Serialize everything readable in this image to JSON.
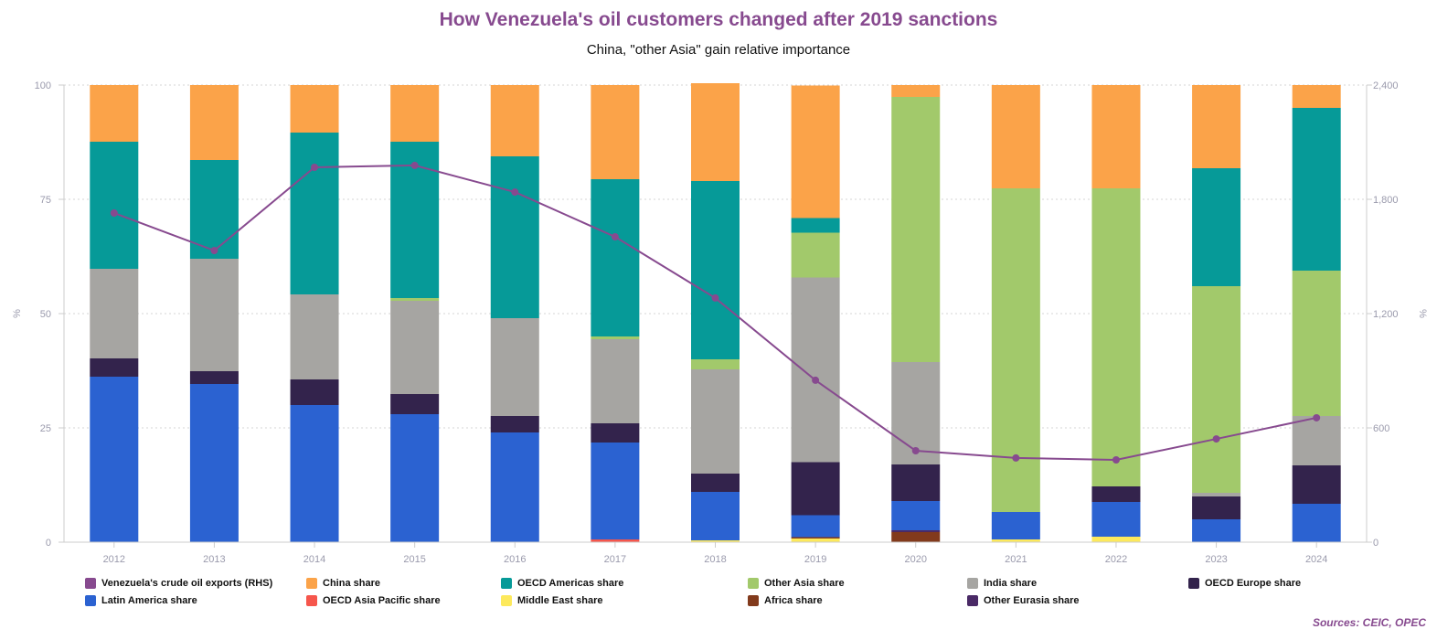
{
  "chart_data": {
    "type": "bar",
    "stacked": true,
    "title": "How Venezuela's oil customers changed after 2019 sanctions",
    "subtitle": "China, \"other Asia\" gain relative importance",
    "ylabel": "%",
    "ylabel_right": "%",
    "ylim": [
      0,
      100
    ],
    "ylim_right": [
      0,
      2400
    ],
    "yticks": [
      "0",
      "25",
      "50",
      "75",
      "100"
    ],
    "yticks_right": [
      "0",
      "600",
      "1,200",
      "1,800",
      "2,400"
    ],
    "grid": true,
    "legend_position": "bottom",
    "categories": [
      "2012",
      "2013",
      "2014",
      "2015",
      "2016",
      "2017",
      "2018",
      "2019",
      "2020",
      "2021",
      "2022",
      "2023",
      "2024"
    ],
    "series": [
      {
        "name": "OECD Asia Pacific share",
        "color": "#f6564c",
        "values": [
          0,
          0,
          0,
          0,
          0,
          0.6,
          0,
          0,
          0,
          0,
          0,
          0,
          0
        ]
      },
      {
        "name": "Middle East share",
        "color": "#fde95c",
        "values": [
          0,
          0,
          0,
          0,
          0,
          0,
          0.4,
          0.8,
          0,
          0.6,
          1.2,
          0,
          0
        ]
      },
      {
        "name": "Africa share",
        "color": "#823a1c",
        "values": [
          0,
          0,
          0,
          0,
          0,
          0,
          0,
          0.3,
          2.2,
          0,
          0,
          0,
          0
        ]
      },
      {
        "name": "Other Eurasia share",
        "color": "#4a2a66",
        "values": [
          0,
          0,
          0,
          0,
          0,
          0,
          0,
          0,
          0.4,
          0,
          0,
          0,
          0
        ]
      },
      {
        "name": "Latin America share",
        "color": "#2b62d1",
        "values": [
          36.2,
          34.6,
          30,
          28,
          24,
          21.2,
          10.6,
          4.8,
          6.4,
          6,
          7.6,
          5,
          8.4
        ]
      },
      {
        "name": "OECD Europe share",
        "color": "#33234c",
        "values": [
          4,
          2.8,
          5.6,
          4.4,
          3.6,
          4.2,
          4,
          11.6,
          8,
          0,
          3.4,
          5,
          8.4
        ]
      },
      {
        "name": "India share",
        "color": "#a6a5a2",
        "values": [
          19.6,
          24.6,
          18.6,
          20.4,
          21.4,
          18.4,
          22.8,
          40.4,
          22.4,
          0,
          0,
          0.8,
          10.8
        ]
      },
      {
        "name": "Other Asia share",
        "color": "#a2c96b",
        "values": [
          0,
          0,
          0,
          0.6,
          0,
          0.6,
          2.2,
          9.8,
          58,
          70.8,
          65.2,
          45.2,
          31.8
        ]
      },
      {
        "name": "OECD Americas share",
        "color": "#069a98",
        "values": [
          27.8,
          21.6,
          35.4,
          34.2,
          35.4,
          34.4,
          39,
          3.2,
          0,
          0,
          0,
          25.8,
          35.6
        ]
      },
      {
        "name": "China share",
        "color": "#fba349",
        "values": [
          12.4,
          16.4,
          10.4,
          12.4,
          15.6,
          20.6,
          21.4,
          29,
          2.6,
          22.6,
          22.6,
          18.2,
          5
        ]
      }
    ],
    "line_series": {
      "name": "Venezuela's crude oil exports (RHS)",
      "color": "#874a8f",
      "axis": "right",
      "values": [
        1728,
        1531,
        1968,
        1978,
        1838,
        1603,
        1282,
        850,
        480,
        442,
        432,
        542,
        653
      ]
    }
  },
  "legend": [
    {
      "label": "Venezuela's crude oil exports (RHS)",
      "color": "#874a8f"
    },
    {
      "label": "China share",
      "color": "#fba349"
    },
    {
      "label": "OECD Americas share",
      "color": "#069a98"
    },
    {
      "label": "Other Asia share",
      "color": "#a2c96b"
    },
    {
      "label": "India share",
      "color": "#a6a5a2"
    },
    {
      "label": "OECD Europe share",
      "color": "#33234c"
    },
    {
      "label": "Latin America share",
      "color": "#2b62d1"
    },
    {
      "label": "OECD Asia Pacific share",
      "color": "#f6564c"
    },
    {
      "label": "Middle East share",
      "color": "#fde95c"
    },
    {
      "label": "Africa share",
      "color": "#823a1c"
    },
    {
      "label": "Other Eurasia share",
      "color": "#4a2a66"
    }
  ],
  "source": "Sources: CEIC, OPEC"
}
